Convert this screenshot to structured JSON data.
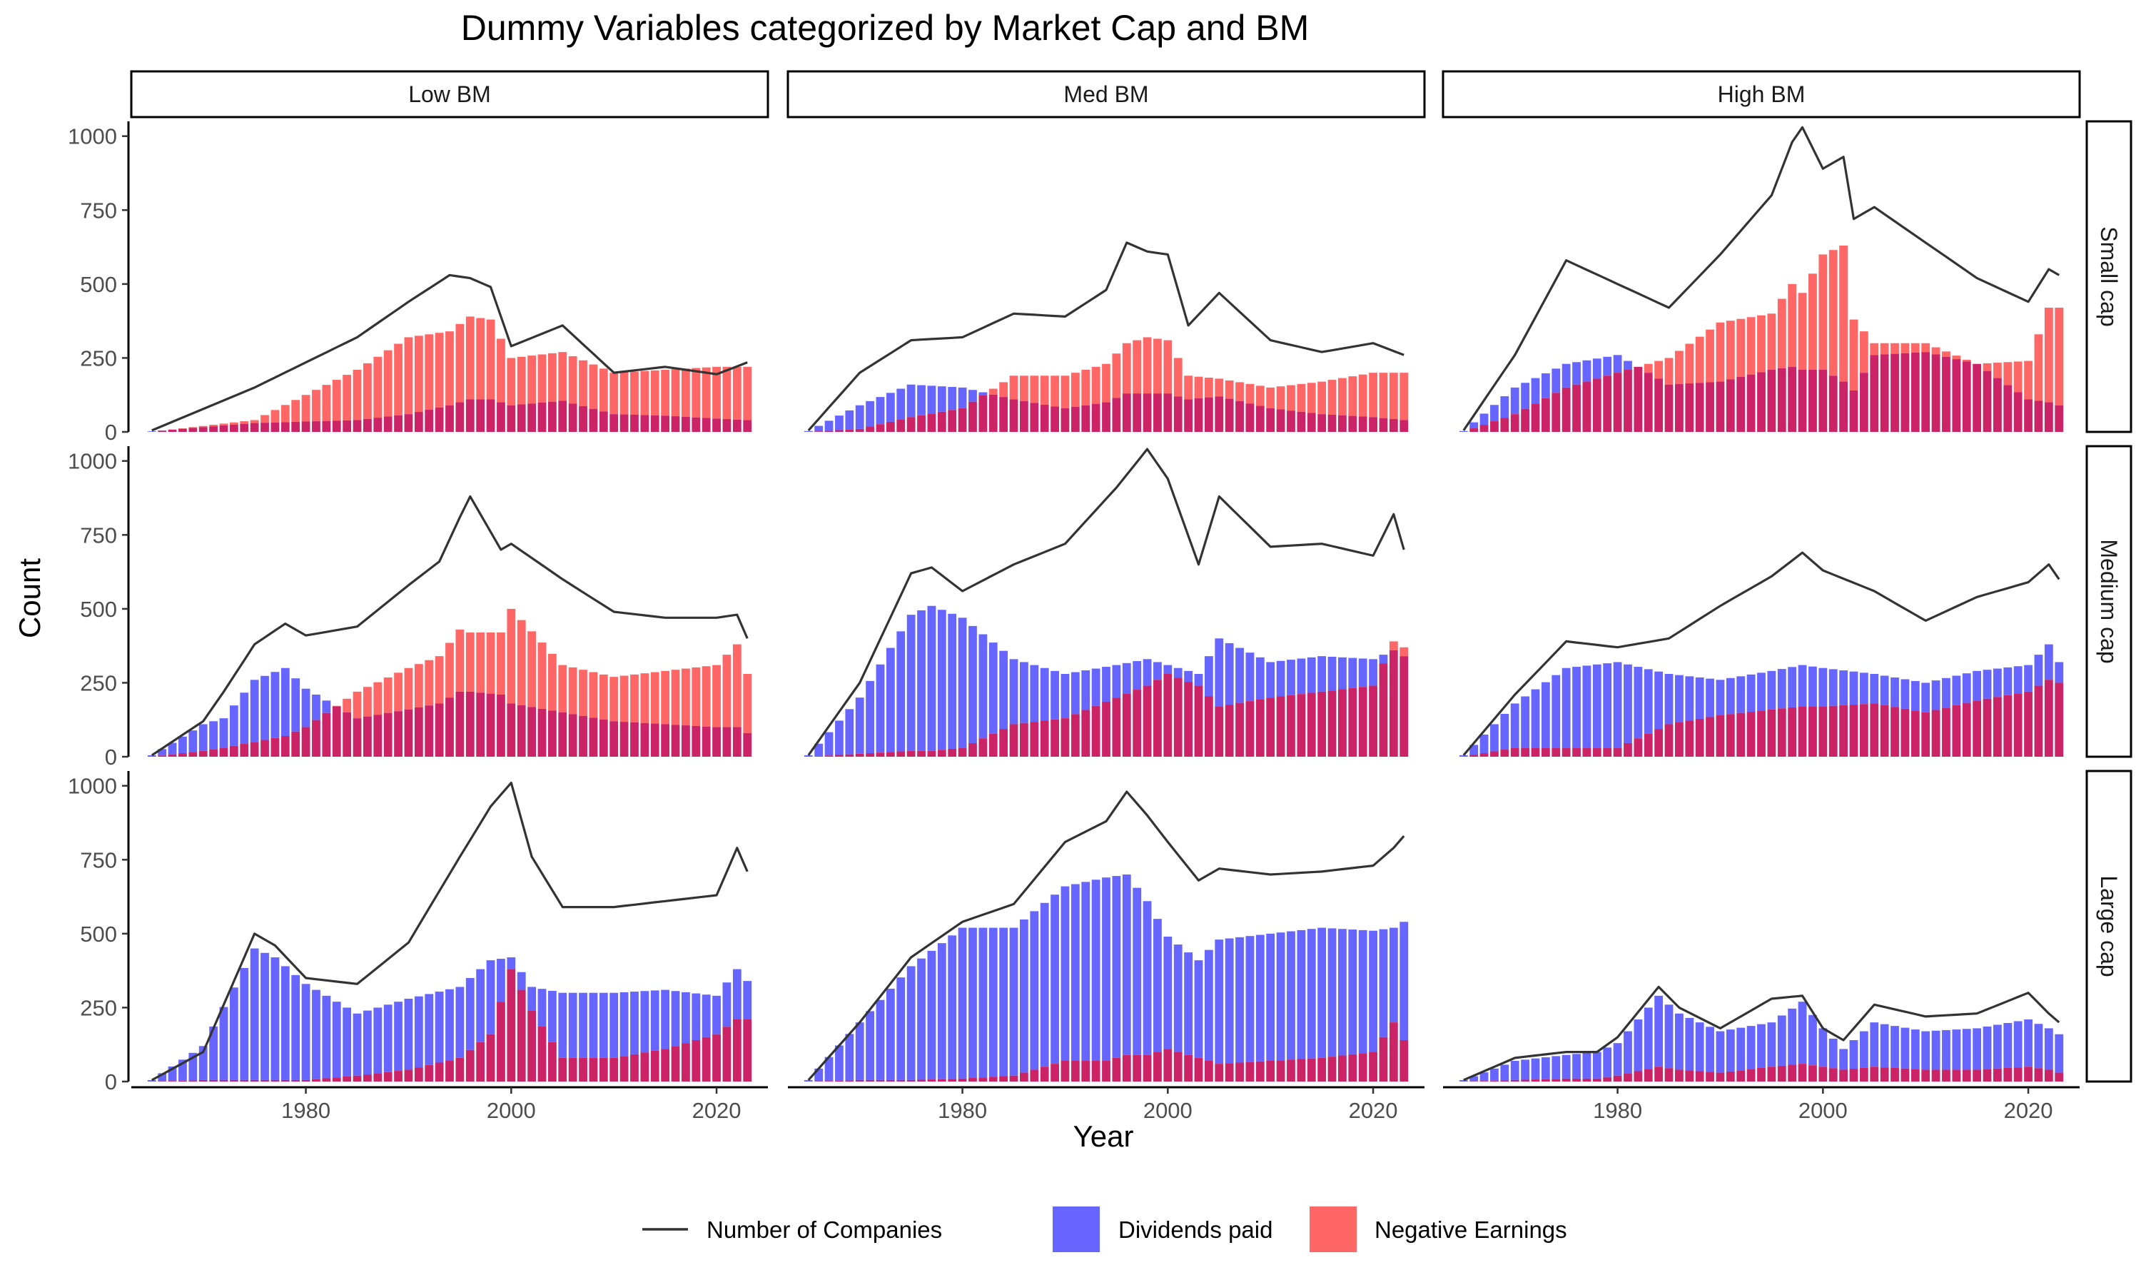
{
  "chart_data": {
    "type": "bar",
    "title": "Dummy Variables categorized by Market Cap and BM",
    "xlabel": "Year",
    "ylabel": "Count",
    "xlim": [
      1963,
      2025
    ],
    "ylim": [
      0,
      1050
    ],
    "x_ticks": [
      1980,
      2000,
      2020
    ],
    "y_ticks": [
      0,
      250,
      500,
      750,
      1000
    ],
    "columns": [
      "Low BM",
      "Med BM",
      "High BM"
    ],
    "rows": [
      "Small cap",
      "Medium cap",
      "Large cap"
    ],
    "legend": {
      "position": "bottom",
      "items": [
        {
          "label": "Number of Companies",
          "type": "line",
          "color": "#333333"
        },
        {
          "label": "Dividends paid",
          "type": "fill",
          "color": "#6666ff"
        },
        {
          "label": "Negative Earnings",
          "type": "fill",
          "color": "#ff6666"
        }
      ]
    },
    "overlap_color": "#cc2266",
    "panels": [
      {
        "row": "Small cap",
        "col": "Low BM",
        "years": [
          1965,
          1975,
          1985,
          1990,
          1994,
          1996,
          1998,
          2000,
          2005,
          2010,
          2015,
          2020,
          2023
        ],
        "companies": [
          5,
          150,
          320,
          440,
          530,
          520,
          490,
          290,
          360,
          200,
          220,
          195,
          235
        ],
        "dividends": [
          2,
          30,
          40,
          60,
          90,
          110,
          110,
          90,
          105,
          60,
          55,
          45,
          40
        ],
        "negative_earnings": [
          0,
          40,
          210,
          320,
          340,
          390,
          380,
          250,
          270,
          200,
          210,
          220,
          220
        ]
      },
      {
        "row": "Small cap",
        "col": "Med BM",
        "years": [
          1965,
          1970,
          1975,
          1980,
          1985,
          1990,
          1994,
          1996,
          1998,
          2000,
          2002,
          2005,
          2010,
          2015,
          2020,
          2023
        ],
        "companies": [
          5,
          200,
          310,
          320,
          400,
          390,
          480,
          640,
          610,
          600,
          360,
          470,
          310,
          270,
          300,
          260
        ],
        "dividends": [
          3,
          90,
          160,
          150,
          110,
          80,
          100,
          130,
          130,
          130,
          110,
          120,
          80,
          60,
          50,
          40
        ],
        "negative_earnings": [
          0,
          10,
          50,
          80,
          190,
          190,
          230,
          300,
          320,
          310,
          190,
          180,
          150,
          170,
          200,
          200
        ]
      },
      {
        "row": "Small cap",
        "col": "High BM",
        "years": [
          1965,
          1970,
          1975,
          1980,
          1985,
          1990,
          1995,
          1997,
          1998,
          2000,
          2002,
          2003,
          2005,
          2010,
          2015,
          2020,
          2022,
          2023
        ],
        "companies": [
          5,
          260,
          580,
          500,
          420,
          600,
          800,
          980,
          1030,
          890,
          930,
          720,
          760,
          640,
          520,
          440,
          550,
          530
        ],
        "dividends": [
          3,
          150,
          230,
          260,
          160,
          170,
          210,
          220,
          210,
          210,
          170,
          140,
          260,
          270,
          230,
          110,
          100,
          90
        ],
        "negative_earnings": [
          0,
          60,
          150,
          200,
          250,
          370,
          400,
          500,
          470,
          600,
          630,
          380,
          300,
          300,
          230,
          240,
          420,
          420
        ]
      },
      {
        "row": "Medium cap",
        "col": "Low BM",
        "years": [
          1965,
          1970,
          1972,
          1975,
          1978,
          1980,
          1985,
          1990,
          1993,
          1995,
          1996,
          1999,
          2000,
          2005,
          2010,
          2015,
          2020,
          2022,
          2023
        ],
        "companies": [
          5,
          120,
          220,
          380,
          450,
          410,
          440,
          580,
          660,
          810,
          880,
          700,
          720,
          600,
          490,
          470,
          470,
          480,
          400
        ],
        "dividends": [
          5,
          110,
          130,
          260,
          300,
          230,
          130,
          160,
          180,
          220,
          220,
          210,
          180,
          150,
          120,
          110,
          100,
          100,
          80
        ],
        "negative_earnings": [
          0,
          20,
          30,
          50,
          70,
          100,
          220,
          300,
          340,
          430,
          420,
          420,
          500,
          310,
          270,
          290,
          310,
          380,
          280
        ]
      },
      {
        "row": "Medium cap",
        "col": "Med BM",
        "years": [
          1965,
          1970,
          1975,
          1977,
          1980,
          1985,
          1990,
          1995,
          1998,
          2000,
          2003,
          2005,
          2010,
          2015,
          2020,
          2022,
          2023
        ],
        "companies": [
          5,
          250,
          620,
          640,
          560,
          650,
          720,
          910,
          1040,
          940,
          650,
          880,
          710,
          720,
          680,
          820,
          700
        ],
        "dividends": [
          5,
          200,
          480,
          510,
          470,
          330,
          280,
          310,
          330,
          310,
          280,
          400,
          320,
          340,
          330,
          360,
          340
        ],
        "negative_earnings": [
          0,
          10,
          20,
          20,
          30,
          110,
          130,
          200,
          240,
          280,
          240,
          170,
          200,
          220,
          240,
          390,
          370
        ]
      },
      {
        "row": "Medium cap",
        "col": "High BM",
        "years": [
          1965,
          1970,
          1975,
          1980,
          1985,
          1990,
          1995,
          1998,
          2000,
          2005,
          2010,
          2015,
          2020,
          2022,
          2023
        ],
        "companies": [
          5,
          210,
          390,
          370,
          400,
          510,
          610,
          690,
          630,
          560,
          460,
          540,
          590,
          650,
          600
        ],
        "dividends": [
          5,
          180,
          300,
          320,
          280,
          260,
          290,
          310,
          300,
          280,
          250,
          290,
          310,
          380,
          320
        ],
        "negative_earnings": [
          0,
          30,
          30,
          30,
          110,
          140,
          160,
          170,
          170,
          180,
          150,
          190,
          220,
          260,
          250
        ]
      },
      {
        "row": "Large cap",
        "col": "Low BM",
        "years": [
          1965,
          1970,
          1975,
          1977,
          1980,
          1985,
          1990,
          1995,
          1998,
          2000,
          2002,
          2005,
          2010,
          2015,
          2020,
          2022,
          2023
        ],
        "companies": [
          5,
          100,
          500,
          460,
          350,
          330,
          470,
          760,
          930,
          1010,
          760,
          590,
          590,
          610,
          630,
          790,
          710
        ],
        "dividends": [
          5,
          120,
          450,
          420,
          330,
          230,
          280,
          320,
          410,
          420,
          320,
          300,
          300,
          310,
          290,
          380,
          340
        ],
        "negative_earnings": [
          0,
          5,
          5,
          5,
          5,
          20,
          40,
          80,
          160,
          380,
          240,
          80,
          80,
          110,
          160,
          210,
          210
        ]
      },
      {
        "row": "Large cap",
        "col": "Med BM",
        "years": [
          1965,
          1970,
          1975,
          1980,
          1985,
          1990,
          1994,
          1996,
          1998,
          2000,
          2003,
          2005,
          2010,
          2015,
          2020,
          2022,
          2023
        ],
        "companies": [
          5,
          200,
          420,
          540,
          600,
          810,
          880,
          980,
          900,
          810,
          680,
          720,
          700,
          710,
          730,
          790,
          830
        ],
        "dividends": [
          5,
          200,
          390,
          520,
          520,
          660,
          690,
          700,
          610,
          490,
          410,
          480,
          500,
          520,
          510,
          520,
          540
        ],
        "negative_earnings": [
          0,
          5,
          5,
          10,
          20,
          70,
          70,
          90,
          90,
          110,
          80,
          60,
          70,
          80,
          100,
          200,
          140
        ]
      },
      {
        "row": "Large cap",
        "col": "High BM",
        "years": [
          1965,
          1970,
          1975,
          1978,
          1980,
          1984,
          1986,
          1990,
          1995,
          1998,
          2000,
          2002,
          2005,
          2010,
          2015,
          2020,
          2022,
          2023
        ],
        "companies": [
          5,
          80,
          100,
          100,
          150,
          320,
          250,
          180,
          280,
          290,
          180,
          140,
          260,
          220,
          230,
          300,
          230,
          200
        ],
        "dividends": [
          5,
          70,
          90,
          100,
          130,
          290,
          230,
          170,
          200,
          270,
          180,
          110,
          200,
          170,
          180,
          210,
          180,
          160
        ],
        "negative_earnings": [
          0,
          5,
          10,
          10,
          20,
          50,
          40,
          30,
          50,
          60,
          50,
          40,
          50,
          40,
          40,
          50,
          40,
          30
        ]
      }
    ]
  }
}
